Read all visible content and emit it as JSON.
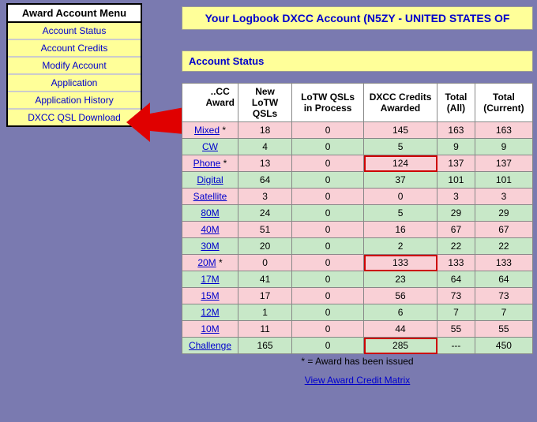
{
  "sidebar": {
    "header": "Award Account Menu",
    "items": [
      {
        "label": "Account Status"
      },
      {
        "label": "Account Credits"
      },
      {
        "label": "Modify Account"
      },
      {
        "label": "Application"
      },
      {
        "label": "Application History"
      },
      {
        "label": "DXCC QSL Download"
      }
    ]
  },
  "header": {
    "title": "Your Logbook DXCC Account (N5ZY - UNITED STATES OF "
  },
  "section": {
    "title": "Account Status"
  },
  "table": {
    "columns": [
      "DXCC Award",
      "New LoTW QSLs",
      "LoTW QSLs in Process",
      "DXCC Credits Awarded",
      "Total (All)",
      "Total (Current)"
    ],
    "header0_masked": "..CC\nAward",
    "rows": [
      {
        "award": "Mixed",
        "star": true,
        "new": "18",
        "proc": "0",
        "credits": "145",
        "all": "163",
        "cur": "163",
        "color": "pink"
      },
      {
        "award": "CW",
        "star": false,
        "new": "4",
        "proc": "0",
        "credits": "5",
        "all": "9",
        "cur": "9",
        "color": "green"
      },
      {
        "award": "Phone",
        "star": true,
        "new": "13",
        "proc": "0",
        "credits": "124",
        "all": "137",
        "cur": "137",
        "color": "pink",
        "box_credits": true
      },
      {
        "award": "Digital",
        "star": false,
        "new": "64",
        "proc": "0",
        "credits": "37",
        "all": "101",
        "cur": "101",
        "color": "green"
      },
      {
        "award": "Satellite",
        "star": false,
        "new": "3",
        "proc": "0",
        "credits": "0",
        "all": "3",
        "cur": "3",
        "color": "pink"
      },
      {
        "award": "80M",
        "star": false,
        "new": "24",
        "proc": "0",
        "credits": "5",
        "all": "29",
        "cur": "29",
        "color": "green"
      },
      {
        "award": "40M",
        "star": false,
        "new": "51",
        "proc": "0",
        "credits": "16",
        "all": "67",
        "cur": "67",
        "color": "pink"
      },
      {
        "award": "30M",
        "star": false,
        "new": "20",
        "proc": "0",
        "credits": "2",
        "all": "22",
        "cur": "22",
        "color": "green"
      },
      {
        "award": "20M",
        "star": true,
        "new": "0",
        "proc": "0",
        "credits": "133",
        "all": "133",
        "cur": "133",
        "color": "pink",
        "box_credits": true
      },
      {
        "award": "17M",
        "star": false,
        "new": "41",
        "proc": "0",
        "credits": "23",
        "all": "64",
        "cur": "64",
        "color": "green"
      },
      {
        "award": "15M",
        "star": false,
        "new": "17",
        "proc": "0",
        "credits": "56",
        "all": "73",
        "cur": "73",
        "color": "pink"
      },
      {
        "award": "12M",
        "star": false,
        "new": "1",
        "proc": "0",
        "credits": "6",
        "all": "7",
        "cur": "7",
        "color": "green"
      },
      {
        "award": "10M",
        "star": false,
        "new": "11",
        "proc": "0",
        "credits": "44",
        "all": "55",
        "cur": "55",
        "color": "pink"
      },
      {
        "award": "Challenge",
        "star": false,
        "new": "165",
        "proc": "0",
        "credits": "285",
        "all": "---",
        "cur": "450",
        "color": "green",
        "box_credits": true
      }
    ],
    "footnote": "* = Award has been issued",
    "matrix_link": "View Award Credit Matrix"
  },
  "colors": {
    "page_bg": "#7a7ab0",
    "highlight_bg": "#ffff99",
    "link": "#0000cc",
    "row_pink": "#f9d0d6",
    "row_green": "#c8e8c8",
    "box_outline": "#cc0000",
    "arrow": "#e00000"
  }
}
